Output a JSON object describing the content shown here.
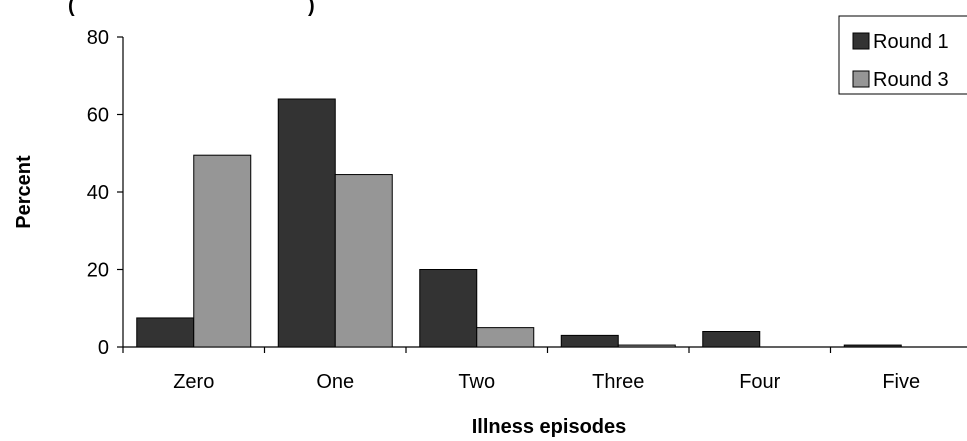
{
  "chart_data": {
    "type": "bar",
    "title_fragment": "(",
    "title_fragment_right": ")",
    "xlabel": "Illness episodes",
    "ylabel": "Percent",
    "categories": [
      "Zero",
      "One",
      "Two",
      "Three",
      "Four",
      "Five"
    ],
    "yticks": [
      "0",
      "20",
      "40",
      "60",
      "80"
    ],
    "ylim": [
      0,
      80
    ],
    "grid": false,
    "legend_position": "top-right",
    "series": [
      {
        "name": "Round 1",
        "color": "#333333",
        "values": [
          7.5,
          64,
          20,
          3,
          4,
          0.5
        ]
      },
      {
        "name": "Round 3",
        "color": "#969696",
        "values": [
          49.5,
          44.5,
          5,
          0.5,
          0,
          0
        ]
      }
    ]
  }
}
